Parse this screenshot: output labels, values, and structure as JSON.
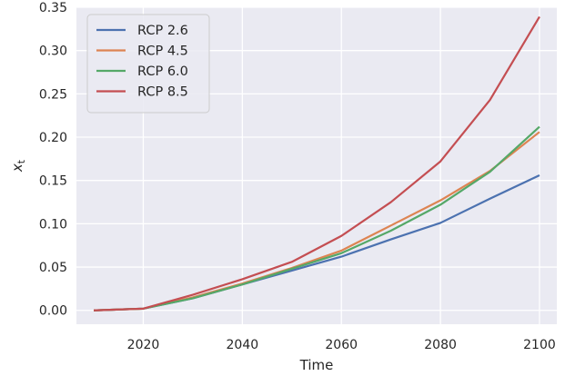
{
  "chart_data": {
    "type": "line",
    "title": "",
    "xlabel": "Time",
    "ylabel": "x",
    "ylabel_subscript": "t",
    "xlim": [
      2006.5,
      2103.5
    ],
    "ylim": [
      -0.016,
      0.35
    ],
    "x_ticks": [
      2020,
      2040,
      2060,
      2080,
      2100
    ],
    "y_ticks": [
      0.0,
      0.05,
      0.1,
      0.15,
      0.2,
      0.25,
      0.3,
      0.35
    ],
    "x_tick_labels": [
      "2020",
      "2040",
      "2060",
      "2080",
      "2100"
    ],
    "y_tick_labels": [
      "0.00",
      "0.05",
      "0.10",
      "0.15",
      "0.20",
      "0.25",
      "0.30",
      "0.35"
    ],
    "grid": true,
    "background_color": "#eaeaf2",
    "legend_position": "upper-left",
    "x": [
      2010,
      2020,
      2030,
      2040,
      2050,
      2060,
      2070,
      2080,
      2090,
      2100
    ],
    "series": [
      {
        "name": "RCP 2.6",
        "color": "#4c72b0",
        "values": [
          0.0,
          0.002,
          0.014,
          0.03,
          0.046,
          0.062,
          0.082,
          0.101,
          0.129,
          0.156
        ]
      },
      {
        "name": "RCP 4.5",
        "color": "#dd8452",
        "values": [
          0.0,
          0.002,
          0.015,
          0.031,
          0.049,
          0.069,
          0.098,
          0.127,
          0.161,
          0.206
        ]
      },
      {
        "name": "RCP 6.0",
        "color": "#55a868",
        "values": [
          0.0,
          0.002,
          0.014,
          0.03,
          0.048,
          0.066,
          0.092,
          0.122,
          0.16,
          0.212
        ]
      },
      {
        "name": "RCP 8.5",
        "color": "#c44e52",
        "values": [
          0.0,
          0.002,
          0.018,
          0.036,
          0.056,
          0.086,
          0.125,
          0.172,
          0.243,
          0.339
        ]
      }
    ]
  }
}
